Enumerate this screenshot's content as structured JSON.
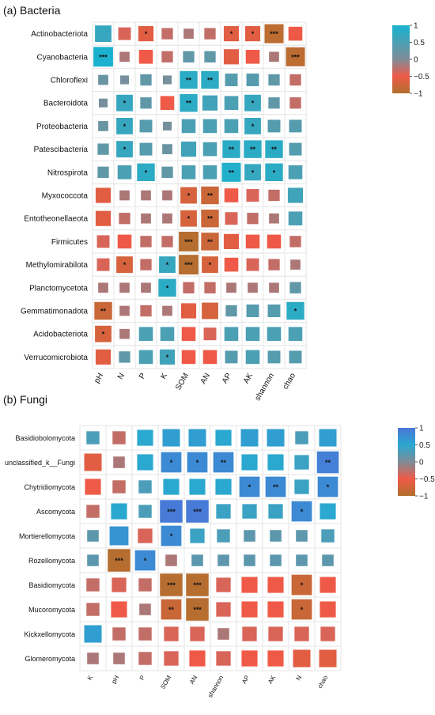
{
  "chart_data": [
    {
      "type": "heatmap",
      "title": "(a) Bacteria",
      "rows": [
        "Actinobacteriota",
        "Cyanobacteria",
        "Chloroflexi",
        "Bacteroidota",
        "Proteobacteria",
        "Patescibacteria",
        "Nitrospirota",
        "Myxococcota",
        "Entotheonellaeota",
        "Firmicutes",
        "Methylomirabilota",
        "Planctomycetota",
        "Gemmatimonadota",
        "Acidobacteriota",
        "Verrucomicrobiota"
      ],
      "columns": [
        "pH",
        "N",
        "P",
        "K",
        "SOM",
        "AN",
        "AP",
        "AK",
        "shannon",
        "chao"
      ],
      "values": [
        [
          0.7,
          -0.4,
          -0.6,
          -0.3,
          -0.2,
          -0.3,
          -0.6,
          -0.6,
          -0.9,
          -0.5
        ],
        [
          0.95,
          -0.2,
          -0.5,
          -0.3,
          0.3,
          0.3,
          -0.6,
          -0.5,
          -0.2,
          -0.9
        ],
        [
          0.2,
          0.1,
          0.3,
          0.1,
          0.8,
          0.8,
          0.4,
          0.4,
          0.3,
          -0.3
        ],
        [
          0.1,
          0.7,
          0.3,
          -0.5,
          0.8,
          0.6,
          0.5,
          0.7,
          0.3,
          -0.3
        ],
        [
          0.2,
          0.7,
          0.4,
          0.1,
          0.5,
          0.5,
          0.5,
          0.7,
          0.4,
          0.4
        ],
        [
          0.3,
          0.7,
          0.4,
          0.2,
          0.6,
          0.5,
          0.8,
          0.8,
          0.8,
          0.4
        ],
        [
          0.3,
          0.5,
          0.8,
          0.3,
          0.5,
          0.5,
          0.9,
          0.7,
          0.8,
          0.5
        ],
        [
          -0.6,
          -0.2,
          -0.2,
          -0.2,
          -0.7,
          -0.8,
          -0.5,
          -0.4,
          -0.3,
          0.6
        ],
        [
          -0.6,
          -0.3,
          -0.2,
          -0.2,
          -0.7,
          -0.8,
          -0.4,
          -0.3,
          -0.2,
          0.5
        ],
        [
          -0.4,
          -0.5,
          -0.3,
          -0.3,
          -0.95,
          -0.8,
          -0.6,
          -0.5,
          -0.5,
          -0.3
        ],
        [
          -0.4,
          -0.7,
          -0.3,
          0.7,
          -0.95,
          -0.7,
          -0.5,
          -0.4,
          -0.3,
          -0.2
        ],
        [
          -0.2,
          -0.2,
          -0.2,
          0.8,
          -0.3,
          -0.3,
          -0.2,
          -0.2,
          -0.2,
          0.3
        ],
        [
          -0.8,
          -0.2,
          -0.3,
          -0.2,
          -0.6,
          -0.7,
          0.3,
          0.4,
          0.4,
          0.8
        ],
        [
          -0.7,
          -0.2,
          0.5,
          0.5,
          -0.5,
          -0.4,
          0.5,
          0.5,
          0.5,
          0.5
        ],
        [
          -0.6,
          0.3,
          0.5,
          0.6,
          -0.5,
          -0.5,
          0.4,
          0.5,
          0.4,
          0.4
        ]
      ],
      "stars": [
        [
          "",
          "",
          "*",
          "",
          "",
          "",
          "*",
          "*",
          "***",
          ""
        ],
        [
          "***",
          "",
          "",
          "",
          "",
          "",
          "",
          "",
          "",
          "***"
        ],
        [
          "",
          "",
          "",
          "",
          "**",
          "**",
          "",
          "",
          "",
          ""
        ],
        [
          "",
          "*",
          "",
          "",
          "**",
          "",
          "",
          "*",
          "",
          ""
        ],
        [
          "",
          "*",
          "",
          "",
          "",
          "",
          "",
          "*",
          "",
          ""
        ],
        [
          "",
          "*",
          "",
          "",
          "",
          "",
          "**",
          "**",
          "**",
          ""
        ],
        [
          "",
          "",
          "*",
          "",
          "",
          "",
          "**",
          "*",
          "*",
          ""
        ],
        [
          "",
          "",
          "",
          "",
          "*",
          "**",
          "",
          "",
          "",
          ""
        ],
        [
          "",
          "",
          "",
          "",
          "*",
          "**",
          "",
          "",
          "",
          ""
        ],
        [
          "",
          "",
          "",
          "",
          "***",
          "**",
          "",
          "",
          "",
          ""
        ],
        [
          "",
          "*",
          "",
          "*",
          "***",
          "*",
          "",
          "",
          "",
          ""
        ],
        [
          "",
          "",
          "",
          "*",
          "",
          "",
          "",
          "",
          "",
          ""
        ],
        [
          "**",
          "",
          "",
          "",
          "",
          "",
          "",
          "",
          "",
          "*"
        ],
        [
          "*",
          "",
          "",
          "",
          "",
          "",
          "",
          "",
          "",
          ""
        ],
        [
          "",
          "",
          "",
          "*",
          "",
          "",
          "",
          "",
          "",
          ""
        ]
      ],
      "legend": {
        "ticks": [
          "1",
          "0.5",
          "0",
          "−0.5",
          "−1"
        ]
      }
    },
    {
      "type": "heatmap",
      "title": "(b) Fungi",
      "rows": [
        "Basidiobolomycota",
        "unclassified_k__Fungi",
        "Chytridiomycota",
        "Ascomycota",
        "Mortierellomycota",
        "Rozellomycota",
        "Basidiomycota",
        "Mucoromycota",
        "Kickxellomycota",
        "Glomeromycota"
      ],
      "columns": [
        "K",
        "pH",
        "P",
        "SOM",
        "AN",
        "shannon",
        "AP",
        "AK",
        "N",
        "chao"
      ],
      "values": [
        [
          0.3,
          -0.3,
          0.5,
          0.6,
          0.6,
          0.5,
          0.6,
          0.6,
          0.3,
          0.6
        ],
        [
          -0.6,
          -0.2,
          0.5,
          0.8,
          0.8,
          0.8,
          0.5,
          0.5,
          0.4,
          0.9
        ],
        [
          -0.5,
          -0.3,
          0.3,
          0.5,
          0.5,
          0.5,
          0.8,
          0.8,
          0.4,
          0.8
        ],
        [
          -0.3,
          0.5,
          0.3,
          0.95,
          0.95,
          0.4,
          0.4,
          0.4,
          0.8,
          0.5
        ],
        [
          0.2,
          0.7,
          -0.4,
          0.8,
          0.4,
          0.3,
          0.2,
          0.2,
          0.2,
          0.3
        ],
        [
          0.2,
          -0.95,
          0.8,
          -0.2,
          0.2,
          0.2,
          0.2,
          0.2,
          0.2,
          0.2
        ],
        [
          -0.3,
          -0.4,
          -0.3,
          -0.95,
          -0.95,
          -0.4,
          -0.5,
          -0.5,
          -0.8,
          -0.5
        ],
        [
          -0.3,
          -0.5,
          -0.2,
          -0.8,
          -0.95,
          -0.4,
          -0.5,
          -0.5,
          -0.8,
          -0.5
        ],
        [
          0.6,
          -0.3,
          -0.3,
          -0.4,
          -0.4,
          -0.2,
          -0.4,
          -0.4,
          -0.4,
          -0.4
        ],
        [
          -0.2,
          -0.2,
          -0.3,
          -0.4,
          -0.5,
          -0.4,
          -0.5,
          -0.5,
          -0.6,
          -0.6
        ]
      ],
      "stars": [
        [
          "",
          "",
          "",
          "",
          "",
          "",
          "",
          "",
          "",
          ""
        ],
        [
          "",
          "",
          "",
          "*",
          "*",
          "**",
          "",
          "",
          "",
          "**"
        ],
        [
          "",
          "",
          "",
          "",
          "",
          "",
          "*",
          "**",
          "",
          "*"
        ],
        [
          "",
          "",
          "",
          "***",
          "***",
          "",
          "",
          "",
          "*",
          ""
        ],
        [
          "",
          "",
          "",
          "*",
          "",
          "",
          "",
          "",
          "",
          ""
        ],
        [
          "",
          "***",
          "*",
          "",
          "",
          "",
          "",
          "",
          "",
          ""
        ],
        [
          "",
          "",
          "",
          "***",
          "***",
          "",
          "",
          "",
          "*",
          ""
        ],
        [
          "",
          "",
          "",
          "**",
          "***",
          "",
          "",
          "",
          "*",
          ""
        ],
        [
          "",
          "",
          "",
          "",
          "",
          "",
          "",
          "",
          "",
          ""
        ],
        [
          "",
          "",
          "",
          "",
          "",
          "",
          "",
          "",
          "",
          ""
        ]
      ],
      "legend": {
        "ticks": [
          "1",
          "0.5",
          "0",
          "−0.5",
          "−1"
        ]
      }
    }
  ]
}
